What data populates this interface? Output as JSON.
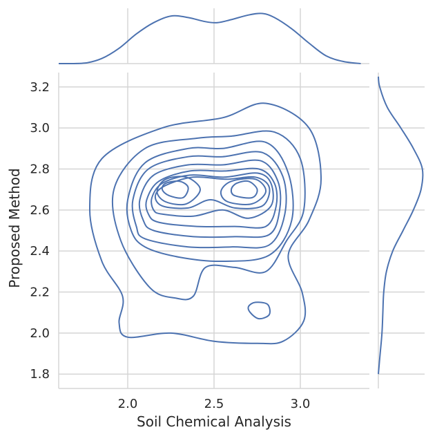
{
  "chart_data": {
    "type": "kde_joint",
    "xlabel": "Soil Chemical Analysis",
    "ylabel": "Proposed Method",
    "xlim": [
      1.6,
      3.4
    ],
    "ylim": [
      1.73,
      3.27
    ],
    "x_ticks": [
      "2.0",
      "2.5",
      "3.0"
    ],
    "y_ticks": [
      "1.8",
      "2.0",
      "2.2",
      "2.4",
      "2.6",
      "2.8",
      "3.0",
      "3.2"
    ],
    "grid": true,
    "line_color": "#4c72b0",
    "grid_color": "#d5d5d5",
    "contours": [
      {
        "level": 1,
        "points": [
          [
            2.0,
            1.98
          ],
          [
            2.25,
            2.0
          ],
          [
            2.5,
            1.96
          ],
          [
            2.75,
            1.95
          ],
          [
            2.9,
            1.96
          ],
          [
            3.02,
            2.06
          ],
          [
            3.01,
            2.2
          ],
          [
            2.93,
            2.38
          ],
          [
            3.05,
            2.55
          ],
          [
            3.12,
            2.75
          ],
          [
            3.05,
            3.0
          ],
          [
            2.8,
            3.12
          ],
          [
            2.55,
            3.05
          ],
          [
            2.2,
            3.0
          ],
          [
            1.85,
            2.85
          ],
          [
            1.78,
            2.6
          ],
          [
            1.85,
            2.35
          ],
          [
            1.97,
            2.18
          ],
          [
            1.95,
            2.05
          ]
        ]
      },
      {
        "level": 2,
        "points": [
          [
            2.13,
            2.22
          ],
          [
            2.28,
            2.17
          ],
          [
            2.38,
            2.18
          ],
          [
            2.45,
            2.32
          ],
          [
            2.62,
            2.32
          ],
          [
            2.8,
            2.3
          ],
          [
            2.92,
            2.45
          ],
          [
            3.02,
            2.6
          ],
          [
            3.0,
            2.85
          ],
          [
            2.85,
            2.98
          ],
          [
            2.6,
            2.96
          ],
          [
            2.4,
            2.95
          ],
          [
            2.1,
            2.9
          ],
          [
            1.92,
            2.7
          ],
          [
            1.96,
            2.45
          ]
        ]
      },
      {
        "level": 3,
        "points": [
          [
            2.1,
            2.42
          ],
          [
            2.3,
            2.37
          ],
          [
            2.55,
            2.35
          ],
          [
            2.82,
            2.38
          ],
          [
            2.95,
            2.55
          ],
          [
            2.93,
            2.78
          ],
          [
            2.8,
            2.93
          ],
          [
            2.55,
            2.9
          ],
          [
            2.35,
            2.9
          ],
          [
            2.1,
            2.83
          ],
          [
            2.0,
            2.65
          ],
          [
            2.02,
            2.5
          ]
        ]
      },
      {
        "level": 4,
        "points": [
          [
            2.1,
            2.46
          ],
          [
            2.35,
            2.42
          ],
          [
            2.6,
            2.42
          ],
          [
            2.82,
            2.43
          ],
          [
            2.91,
            2.58
          ],
          [
            2.9,
            2.76
          ],
          [
            2.78,
            2.88
          ],
          [
            2.55,
            2.86
          ],
          [
            2.35,
            2.86
          ],
          [
            2.12,
            2.8
          ],
          [
            2.03,
            2.65
          ],
          [
            2.05,
            2.52
          ]
        ]
      },
      {
        "level": 5,
        "points": [
          [
            2.15,
            2.5
          ],
          [
            2.38,
            2.47
          ],
          [
            2.62,
            2.47
          ],
          [
            2.82,
            2.48
          ],
          [
            2.88,
            2.6
          ],
          [
            2.87,
            2.74
          ],
          [
            2.77,
            2.84
          ],
          [
            2.55,
            2.82
          ],
          [
            2.35,
            2.82
          ],
          [
            2.15,
            2.77
          ],
          [
            2.07,
            2.65
          ],
          [
            2.09,
            2.55
          ]
        ]
      },
      {
        "level": 6,
        "points": [
          [
            2.18,
            2.54
          ],
          [
            2.4,
            2.52
          ],
          [
            2.62,
            2.52
          ],
          [
            2.8,
            2.52
          ],
          [
            2.86,
            2.62
          ],
          [
            2.85,
            2.73
          ],
          [
            2.76,
            2.8
          ],
          [
            2.56,
            2.79
          ],
          [
            2.36,
            2.79
          ],
          [
            2.18,
            2.74
          ],
          [
            2.11,
            2.65
          ],
          [
            2.12,
            2.58
          ]
        ]
      },
      {
        "level": 7,
        "points": [
          [
            2.2,
            2.58
          ],
          [
            2.38,
            2.57
          ],
          [
            2.55,
            2.6
          ],
          [
            2.7,
            2.56
          ],
          [
            2.83,
            2.62
          ],
          [
            2.83,
            2.73
          ],
          [
            2.75,
            2.78
          ],
          [
            2.56,
            2.76
          ],
          [
            2.36,
            2.77
          ],
          [
            2.2,
            2.73
          ],
          [
            2.14,
            2.66
          ],
          [
            2.15,
            2.6
          ]
        ]
      },
      {
        "level": 8,
        "points": [
          [
            2.2,
            2.62
          ],
          [
            2.35,
            2.61
          ],
          [
            2.48,
            2.65
          ],
          [
            2.62,
            2.61
          ],
          [
            2.78,
            2.62
          ],
          [
            2.82,
            2.71
          ],
          [
            2.74,
            2.76
          ],
          [
            2.57,
            2.75
          ],
          [
            2.38,
            2.76
          ],
          [
            2.22,
            2.72
          ],
          [
            2.16,
            2.67
          ]
        ]
      },
      {
        "level": 9,
        "points": [
          [
            2.22,
            2.64
          ],
          [
            2.34,
            2.63
          ],
          [
            2.42,
            2.7
          ],
          [
            2.34,
            2.76
          ],
          [
            2.22,
            2.75
          ],
          [
            2.17,
            2.69
          ]
        ]
      },
      {
        "level": 9,
        "points": [
          [
            2.58,
            2.64
          ],
          [
            2.72,
            2.63
          ],
          [
            2.8,
            2.69
          ],
          [
            2.74,
            2.75
          ],
          [
            2.6,
            2.74
          ],
          [
            2.54,
            2.69
          ]
        ]
      },
      {
        "level": 10,
        "points": [
          [
            2.24,
            2.67
          ],
          [
            2.32,
            2.66
          ],
          [
            2.35,
            2.71
          ],
          [
            2.3,
            2.74
          ],
          [
            2.22,
            2.73
          ],
          [
            2.2,
            2.7
          ]
        ]
      },
      {
        "level": 10,
        "points": [
          [
            2.62,
            2.67
          ],
          [
            2.72,
            2.66
          ],
          [
            2.75,
            2.7
          ],
          [
            2.7,
            2.74
          ],
          [
            2.63,
            2.73
          ],
          [
            2.6,
            2.7
          ]
        ]
      },
      {
        "level": 11,
        "points": [
          [
            2.71,
            2.1
          ],
          [
            2.76,
            2.07
          ],
          [
            2.82,
            2.09
          ],
          [
            2.81,
            2.14
          ],
          [
            2.74,
            2.15
          ],
          [
            2.7,
            2.13
          ]
        ]
      }
    ],
    "marginal_x": [
      [
        1.6,
        0.0
      ],
      [
        1.75,
        0.01
      ],
      [
        1.85,
        0.1
      ],
      [
        1.95,
        0.3
      ],
      [
        2.05,
        0.58
      ],
      [
        2.15,
        0.8
      ],
      [
        2.25,
        0.93
      ],
      [
        2.35,
        0.9
      ],
      [
        2.45,
        0.82
      ],
      [
        2.52,
        0.8
      ],
      [
        2.6,
        0.86
      ],
      [
        2.7,
        0.95
      ],
      [
        2.78,
        0.98
      ],
      [
        2.85,
        0.9
      ],
      [
        2.95,
        0.68
      ],
      [
        3.05,
        0.4
      ],
      [
        3.15,
        0.15
      ],
      [
        3.25,
        0.04
      ],
      [
        3.35,
        0.0
      ]
    ],
    "marginal_y": [
      [
        1.8,
        0.0
      ],
      [
        1.9,
        0.04
      ],
      [
        2.0,
        0.08
      ],
      [
        2.1,
        0.1
      ],
      [
        2.2,
        0.12
      ],
      [
        2.3,
        0.18
      ],
      [
        2.4,
        0.32
      ],
      [
        2.5,
        0.55
      ],
      [
        2.6,
        0.78
      ],
      [
        2.7,
        0.95
      ],
      [
        2.8,
        0.98
      ],
      [
        2.9,
        0.78
      ],
      [
        3.0,
        0.5
      ],
      [
        3.1,
        0.2
      ],
      [
        3.2,
        0.03
      ],
      [
        3.25,
        0.0
      ]
    ]
  }
}
